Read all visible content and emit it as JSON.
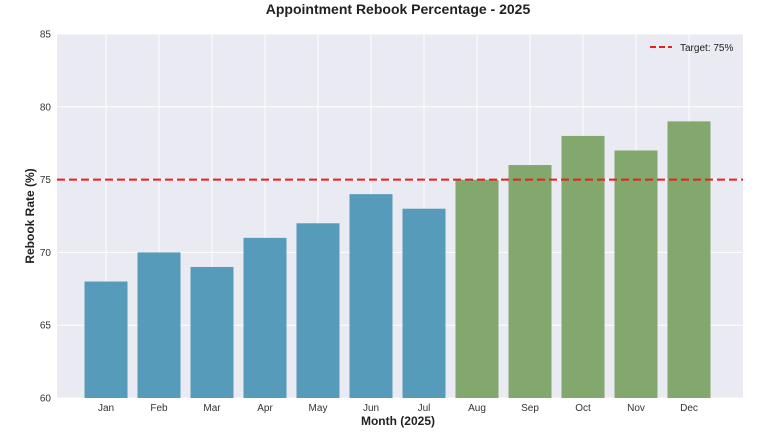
{
  "chart_data": {
    "type": "bar",
    "title": "Appointment Rebook Percentage - 2025",
    "xlabel": "Month (2025)",
    "ylabel": "Rebook Rate (%)",
    "categories": [
      "Jan",
      "Feb",
      "Mar",
      "Apr",
      "May",
      "Jun",
      "Jul",
      "Aug",
      "Sep",
      "Oct",
      "Nov",
      "Dec"
    ],
    "values": [
      68,
      70,
      69,
      71,
      72,
      74,
      73,
      75,
      76,
      78,
      77,
      79
    ],
    "ylim": [
      60,
      85
    ],
    "yticks": [
      60,
      65,
      70,
      75,
      80,
      85
    ],
    "target": {
      "value": 75,
      "label": "Target: 75%",
      "color": "#e8211b"
    },
    "colors": {
      "below_target": "#579bbb",
      "at_or_above_target": "#83a86d",
      "plot_background": "#eaeaf2",
      "grid": "#ffffff"
    },
    "grid": true,
    "legend": {
      "position": "top-right"
    }
  }
}
